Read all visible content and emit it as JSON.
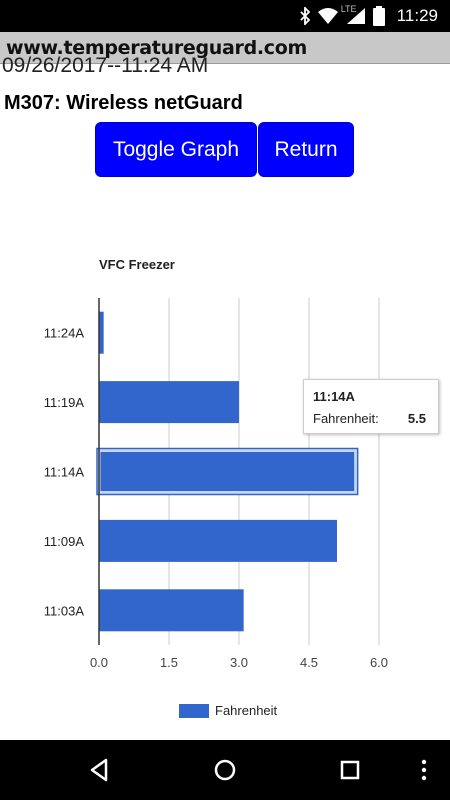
{
  "status_bar": {
    "network": "LTE",
    "time": "11:29",
    "icons": [
      "bluetooth-icon",
      "wifi-icon",
      "signal-icon",
      "battery-icon"
    ]
  },
  "browser": {
    "url": "www.temperatureguard.com"
  },
  "page": {
    "date_text": "09/26/2017--11:24 AM",
    "title": "M307: Wireless netGuard",
    "toggle_button": "Toggle Graph",
    "return_button": "Return"
  },
  "colors": {
    "button": "#0000ff",
    "bar": "#3366cc"
  },
  "chart_data": {
    "type": "bar",
    "orientation": "horizontal",
    "title": "VFC Freezer",
    "categories": [
      "11:24A",
      "11:19A",
      "11:14A",
      "11:09A",
      "11:03A"
    ],
    "series": [
      {
        "name": "Fahrenheit",
        "values": [
          0.1,
          3.0,
          5.5,
          5.1,
          3.1
        ]
      }
    ],
    "xlim": [
      0,
      6.0
    ],
    "x_ticks": [
      "0.0",
      "1.5",
      "3.0",
      "4.5",
      "6.0"
    ],
    "grid": true,
    "legend": "bottom",
    "highlighted_category": "11:14A"
  },
  "tooltip": {
    "title": "11:14A",
    "label": "Fahrenheit:",
    "value": "5.5"
  },
  "nav_bar": {
    "buttons": [
      "back-icon",
      "home-icon",
      "recents-icon",
      "more-icon"
    ]
  }
}
